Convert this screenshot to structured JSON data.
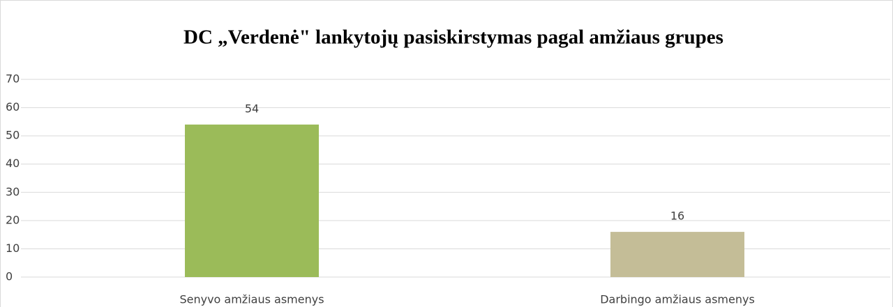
{
  "chart_data": {
    "type": "bar",
    "title": "DC „Verdenė\" lankytojų pasiskirstymas pagal amžiaus grupes",
    "categories": [
      "Senyvo amžiaus asmenys",
      "Darbingo amžiaus asmenys"
    ],
    "values": [
      54,
      16
    ],
    "colors": [
      "#9bbb59",
      "#c4bd97"
    ],
    "ylim": [
      0,
      70
    ],
    "yticks": [
      0,
      10,
      20,
      30,
      40,
      50,
      60,
      70
    ],
    "grid": true
  }
}
